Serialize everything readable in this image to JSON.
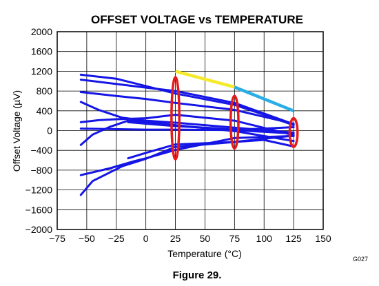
{
  "figure_caption": "Figure 29.",
  "figure_code": "G027",
  "colors": {
    "series": "#1515e6",
    "highlight_yellow": "#f5ea2a",
    "highlight_cyan": "#29aee6",
    "ellipse": "#e61a1a",
    "grid": "#000000"
  },
  "chart_data": {
    "type": "line",
    "title": "OFFSET VOLTAGE vs TEMPERATURE",
    "xlabel": "Temperature (°C)",
    "ylabel": "Offset Voltage (µV)",
    "xlim": [
      -75,
      150
    ],
    "ylim": [
      -2000,
      2000
    ],
    "x_ticks": [
      -75,
      -50,
      -25,
      0,
      25,
      50,
      75,
      100,
      125,
      150
    ],
    "y_ticks": [
      -2000,
      -1600,
      -1200,
      -800,
      -400,
      0,
      400,
      800,
      1200,
      1600,
      2000
    ],
    "x_tick_labels": [
      "−75",
      "−50",
      "−25",
      "0",
      "25",
      "50",
      "75",
      "100",
      "125",
      "150"
    ],
    "y_tick_labels": [
      "−2000",
      "−1600",
      "−1200",
      "−800",
      "−400",
      "0",
      "400",
      "800",
      "1200",
      "1600",
      "2000"
    ],
    "grid": true,
    "series": [
      {
        "x": [
          -55,
          -25,
          0,
          25,
          75,
          100,
          125
        ],
        "y": [
          1130,
          1050,
          900,
          750,
          520,
          320,
          110
        ]
      },
      {
        "x": [
          -55,
          0,
          25,
          75,
          125
        ],
        "y": [
          1030,
          870,
          800,
          560,
          130
        ]
      },
      {
        "x": [
          -55,
          -25,
          0,
          25,
          75,
          125
        ],
        "y": [
          780,
          700,
          640,
          560,
          420,
          140
        ]
      },
      {
        "x": [
          -55,
          -40,
          -20,
          0,
          25,
          75,
          125
        ],
        "y": [
          580,
          420,
          260,
          200,
          160,
          60,
          -40
        ]
      },
      {
        "x": [
          -55,
          -40,
          -25,
          0,
          25,
          75,
          125
        ],
        "y": [
          170,
          210,
          230,
          250,
          320,
          200,
          -90
        ]
      },
      {
        "x": [
          -55,
          -45,
          -30,
          -15,
          0,
          25,
          75,
          125
        ],
        "y": [
          -290,
          -80,
          80,
          200,
          180,
          110,
          -10,
          -210
        ]
      },
      {
        "x": [
          -55,
          0,
          25,
          75,
          125
        ],
        "y": [
          40,
          20,
          20,
          10,
          -60
        ]
      },
      {
        "x": [
          -55,
          -30,
          -10,
          0,
          25,
          75,
          125
        ],
        "y": [
          -900,
          -760,
          -620,
          -560,
          -390,
          -150,
          -110
        ]
      },
      {
        "x": [
          -55,
          -45,
          -20,
          0,
          25,
          75,
          125
        ],
        "y": [
          -1300,
          -1020,
          -720,
          -570,
          -330,
          -230,
          -100
        ]
      },
      {
        "x": [
          -15,
          0,
          25,
          75,
          100,
          125
        ],
        "y": [
          -560,
          -450,
          -280,
          -230,
          -190,
          -320
        ]
      },
      {
        "x": [
          -15,
          0,
          25,
          50,
          75,
          100,
          125
        ],
        "y": [
          170,
          140,
          90,
          60,
          20,
          40,
          70
        ]
      }
    ],
    "highlight_segments": [
      {
        "color": "yellow",
        "x": [
          25,
          75
        ],
        "y": [
          1200,
          880
        ]
      },
      {
        "color": "cyan",
        "x": [
          75,
          125
        ],
        "y": [
          880,
          400
        ]
      }
    ],
    "annotations": [
      {
        "shape": "ellipse",
        "x": 25,
        "y": 250,
        "rx_deg": 3.3,
        "ry_uv": 830
      },
      {
        "shape": "ellipse",
        "x": 75,
        "y": 170,
        "rx_deg": 3.3,
        "ry_uv": 530
      },
      {
        "shape": "ellipse",
        "x": 125,
        "y": -40,
        "rx_deg": 3.3,
        "ry_uv": 290
      }
    ]
  }
}
